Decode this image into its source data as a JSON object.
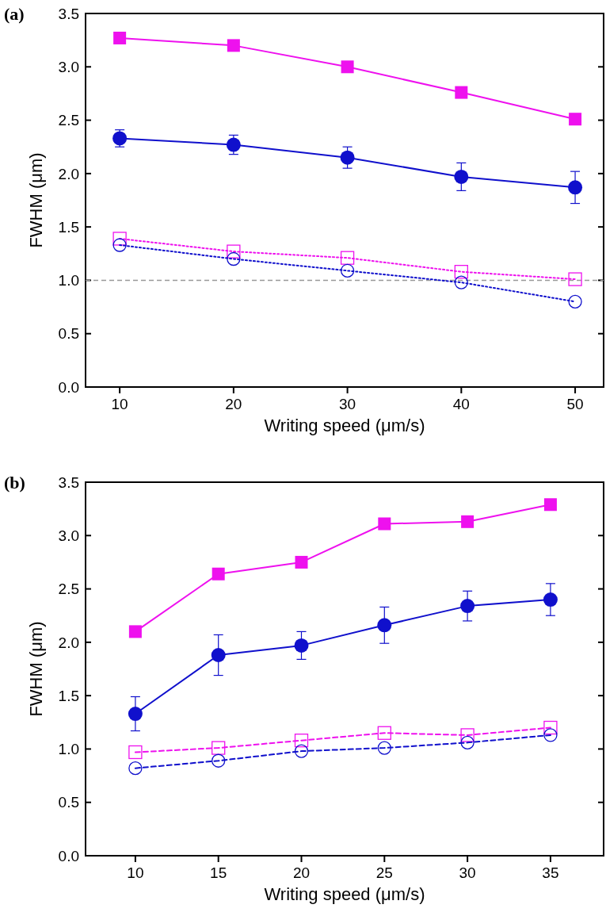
{
  "chart_data": [
    {
      "type": "line",
      "title": "(a)",
      "xlabel": "Writing speed (μm/s)",
      "ylabel": "FWHM (μm)",
      "x": [
        10,
        20,
        30,
        40,
        50
      ],
      "xlim": [
        7,
        52.5
      ],
      "xticks": [
        10,
        20,
        30,
        40,
        50
      ],
      "ylim": [
        0,
        3.5
      ],
      "yticks": [
        {
          "value": 0,
          "label": "0.0"
        },
        0.5,
        {
          "value": 1,
          "label": "1.0"
        },
        1.5,
        {
          "value": 2,
          "label": "2.0"
        },
        2.5,
        {
          "value": 3,
          "label": "3.0"
        },
        3.5
      ],
      "ref_lines": [
        {
          "axis": "y",
          "value": 1,
          "color": "#999999",
          "line_style": "dashed"
        }
      ],
      "series": [
        {
          "color": "#ee11ee",
          "marker": "square",
          "line_style": "solid",
          "values": [
            3.27,
            3.2,
            3.0,
            2.76,
            2.51
          ],
          "errors": [
            0.03,
            0.05,
            0.03,
            0.03,
            0.05
          ]
        },
        {
          "color": "#1010cc",
          "marker": "circle",
          "line_style": "solid",
          "values": [
            2.33,
            2.27,
            2.15,
            1.97,
            1.87
          ],
          "errors": [
            0.08,
            0.09,
            0.1,
            0.13,
            0.15
          ]
        },
        {
          "color": "#ee11ee",
          "marker": "square",
          "line_style": "dotted",
          "values": [
            1.39,
            1.27,
            1.21,
            1.08,
            1.01
          ]
        },
        {
          "color": "#1010cc",
          "marker": "circle",
          "line_style": "dotted",
          "values": [
            1.33,
            1.2,
            1.09,
            0.98,
            0.8
          ]
        }
      ]
    },
    {
      "type": "line",
      "title": "(b)",
      "xlabel": "Writing speed (μm/s)",
      "ylabel": "FWHM (μm)",
      "x": [
        10,
        15,
        20,
        25,
        30,
        35
      ],
      "xlim": [
        7,
        38.2
      ],
      "xticks": [
        10,
        15,
        20,
        25,
        30,
        35
      ],
      "ylim": [
        0,
        3.5
      ],
      "yticks": [
        {
          "value": 0,
          "label": "0.0"
        },
        0.5,
        {
          "value": 1,
          "label": "1.0"
        },
        1.5,
        {
          "value": 2,
          "label": "2.0"
        },
        2.5,
        {
          "value": 3,
          "label": "3.0"
        },
        3.5
      ],
      "series": [
        {
          "color": "#ee11ee",
          "marker": "square",
          "line_style": "solid",
          "values": [
            2.1,
            2.64,
            2.75,
            3.11,
            3.13,
            3.29
          ],
          "errors": [
            0.02,
            0.02,
            0.02,
            0.02,
            0.02,
            0.05
          ]
        },
        {
          "color": "#1010cc",
          "marker": "circle",
          "line_style": "solid",
          "values": [
            1.33,
            1.88,
            1.97,
            2.16,
            2.34,
            2.4
          ],
          "errors": [
            0.16,
            0.19,
            0.13,
            0.17,
            0.14,
            0.15
          ]
        },
        {
          "color": "#ee11ee",
          "marker": "square",
          "line_style": "dashed",
          "values": [
            0.97,
            1.01,
            1.08,
            1.15,
            1.13,
            1.2
          ]
        },
        {
          "color": "#1010cc",
          "marker": "circle",
          "line_style": "dashed",
          "values": [
            0.82,
            0.89,
            0.98,
            1.01,
            1.06,
            1.13
          ]
        }
      ]
    }
  ]
}
